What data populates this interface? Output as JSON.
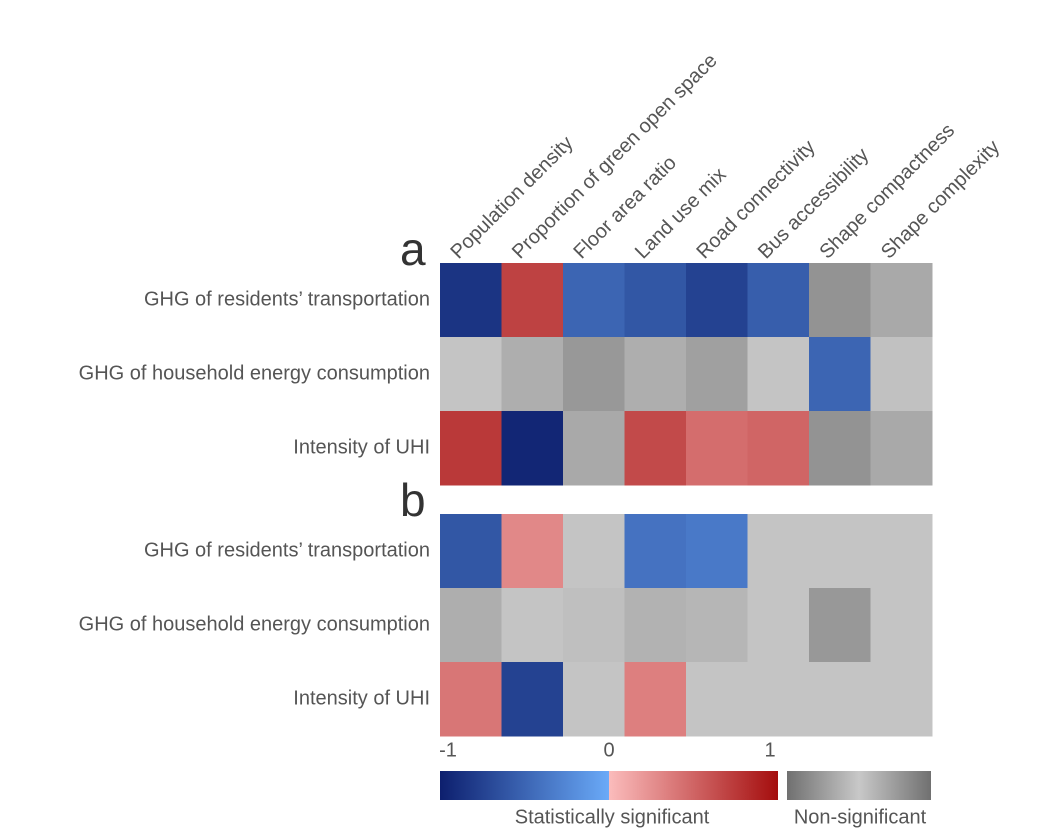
{
  "chart_data": {
    "type": "heatmap",
    "columns": [
      "Population density",
      "Proportion of green open space",
      "Floor area ratio",
      "Land use mix",
      "Road connectivity",
      "Bus accessibility",
      "Shape compactness",
      "Shape complexity"
    ],
    "panels": [
      {
        "label": "a",
        "rows": [
          "GHG of residents’ transportation",
          "GHG of household energy consumption",
          "Intensity of UHI"
        ],
        "values": [
          [
            -0.85,
            0.7,
            -0.5,
            -0.6,
            -0.75,
            -0.55,
            0.6,
            0.35
          ],
          [
            0.05,
            0.3,
            0.55,
            0.3,
            0.45,
            0.05,
            -0.5,
            0.08
          ],
          [
            0.75,
            -0.95,
            0.35,
            0.65,
            0.45,
            0.5,
            0.6,
            0.35
          ]
        ],
        "significant": [
          [
            true,
            true,
            true,
            true,
            true,
            true,
            false,
            false
          ],
          [
            false,
            false,
            false,
            false,
            false,
            false,
            true,
            false
          ],
          [
            true,
            true,
            false,
            true,
            true,
            true,
            false,
            false
          ]
        ]
      },
      {
        "label": "b",
        "rows": [
          "GHG of residents’ transportation",
          "GHG of household energy consumption",
          "Intensity of UHI"
        ],
        "values": [
          [
            -0.6,
            0.3,
            0.05,
            -0.4,
            -0.35,
            0.05,
            0.05,
            0.05
          ],
          [
            0.3,
            0.05,
            0.1,
            0.25,
            0.2,
            0.05,
            0.55,
            0.05
          ],
          [
            0.4,
            -0.75,
            0.05,
            0.35,
            0.05,
            0.05,
            0.05,
            0.05
          ]
        ],
        "significant": [
          [
            true,
            true,
            false,
            true,
            true,
            false,
            false,
            false
          ],
          [
            false,
            false,
            false,
            false,
            false,
            false,
            false,
            false
          ],
          [
            true,
            true,
            false,
            true,
            false,
            false,
            false,
            false
          ]
        ]
      }
    ],
    "colorbar": {
      "lim": [
        -1,
        1
      ],
      "ticks": [
        -1,
        0,
        1
      ],
      "significant_label": "Statistically significant",
      "nonsignificant_label": "Non-significant"
    },
    "colors": {
      "negative": [
        "#0d1f6e",
        "#6aaaf8"
      ],
      "positive": [
        "#fbbcbc",
        "#a40d0d"
      ],
      "gray": [
        "#c8c8c8",
        "#707070"
      ]
    }
  }
}
